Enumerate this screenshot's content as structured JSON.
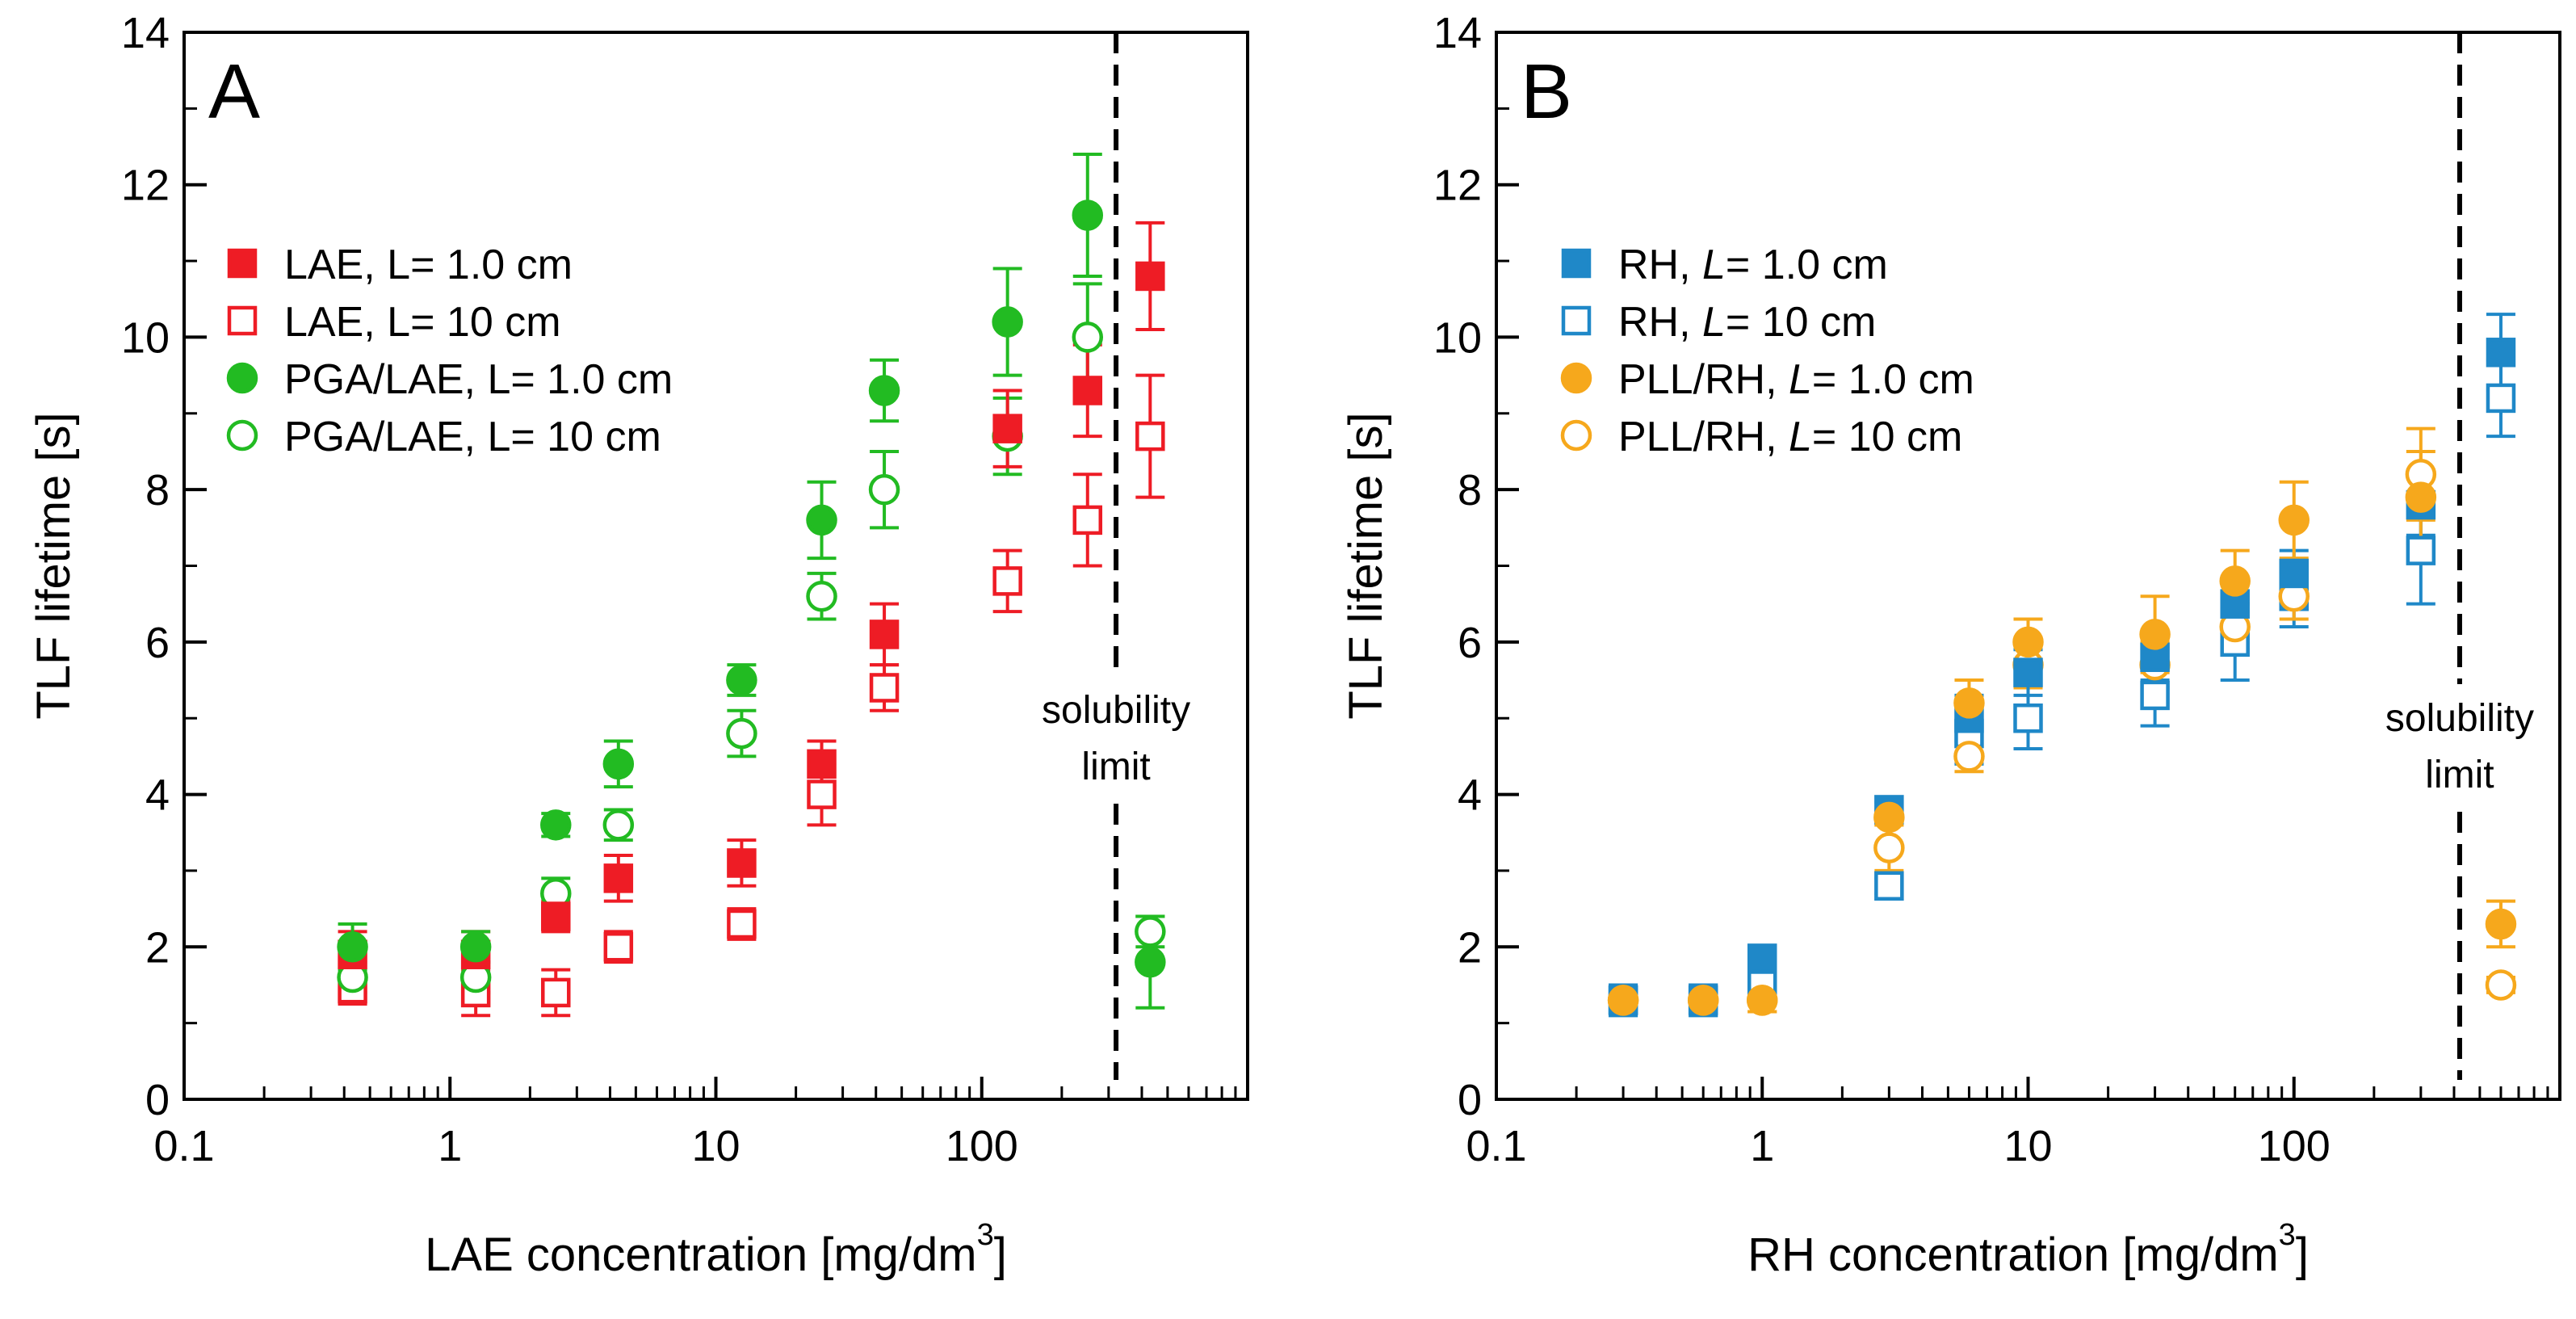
{
  "chart_data": [
    {
      "type": "scatter",
      "panel": "A",
      "xlabel": "LAE concentration [mg/dm",
      "xlabel_sup": "3",
      "xlabel_end": "]",
      "ylabel": "TLF lifetime [s]",
      "xscale": "log",
      "xlim": [
        0.1,
        1000
      ],
      "ylim": [
        0,
        14
      ],
      "xticks": [
        0.1,
        1,
        10,
        100
      ],
      "xtick_labels": [
        "0.1",
        "1",
        "10",
        "100"
      ],
      "yticks": [
        0,
        2,
        4,
        6,
        8,
        10,
        12,
        14
      ],
      "ytick_labels": [
        "0",
        "2",
        "4",
        "6",
        "8",
        "10",
        "12",
        "14"
      ],
      "annotation": {
        "x": 320,
        "lines": [
          "solubility",
          "limit"
        ]
      },
      "series": [
        {
          "name": "LAE, L= 1.0 cm",
          "name_parts": [
            "LAE, L= 1.0 cm"
          ],
          "marker": "square",
          "filled": true,
          "color": "#ee1c25",
          "x": [
            0.43,
            1.25,
            2.5,
            4.3,
            12.5,
            25,
            43,
            125,
            250,
            430
          ],
          "y": [
            1.9,
            1.9,
            2.4,
            2.9,
            3.1,
            4.4,
            6.1,
            8.8,
            9.3,
            10.8
          ],
          "err": [
            0.3,
            0.3,
            0.2,
            0.3,
            0.3,
            0.3,
            0.4,
            0.5,
            0.6,
            0.7
          ]
        },
        {
          "name": "LAE, L= 10 cm",
          "name_parts": [
            "LAE, L= 10 cm"
          ],
          "marker": "square",
          "filled": false,
          "color": "#ee1c25",
          "x": [
            0.43,
            1.25,
            2.5,
            4.3,
            12.5,
            25,
            43,
            125,
            250,
            430
          ],
          "y": [
            1.45,
            1.4,
            1.4,
            2.0,
            2.3,
            4.0,
            5.4,
            6.8,
            7.6,
            8.7
          ],
          "err": [
            0.2,
            0.3,
            0.3,
            0.2,
            0.2,
            0.4,
            0.3,
            0.4,
            0.6,
            0.8
          ]
        },
        {
          "name": "PGA/LAE, L= 1.0 cm",
          "name_parts": [
            "PGA/LAE, L= 1.0 cm"
          ],
          "marker": "circle",
          "filled": true,
          "color": "#22bb22",
          "x": [
            0.43,
            1.25,
            2.5,
            4.3,
            12.5,
            25,
            43,
            125,
            250,
            430
          ],
          "y": [
            2.0,
            2.0,
            3.6,
            4.4,
            5.5,
            7.6,
            9.3,
            10.2,
            11.6,
            1.8
          ],
          "err": [
            0.3,
            0.2,
            0.15,
            0.3,
            0.2,
            0.5,
            0.4,
            0.7,
            0.8,
            0.6
          ]
        },
        {
          "name": "PGA/LAE, L= 10 cm",
          "name_parts": [
            "PGA/LAE, L= 10 cm"
          ],
          "marker": "circle",
          "filled": false,
          "color": "#22bb22",
          "x": [
            0.43,
            1.25,
            2.5,
            4.3,
            12.5,
            25,
            43,
            125,
            250,
            430
          ],
          "y": [
            1.6,
            1.6,
            2.7,
            3.6,
            4.8,
            6.6,
            8.0,
            8.7,
            10.0,
            2.2
          ],
          "err": [
            0.2,
            0.2,
            0.2,
            0.2,
            0.3,
            0.3,
            0.5,
            0.5,
            0.7,
            0.2
          ]
        }
      ]
    },
    {
      "type": "scatter",
      "panel": "B",
      "xlabel": "RH concentration [mg/dm",
      "xlabel_sup": "3",
      "xlabel_end": "]",
      "ylabel": "TLF lifetime [s]",
      "xscale": "log",
      "xlim": [
        0.1,
        1000
      ],
      "ylim": [
        0,
        14
      ],
      "xticks": [
        0.1,
        1,
        10,
        100
      ],
      "xtick_labels": [
        "0.1",
        "1",
        "10",
        "100"
      ],
      "yticks": [
        0,
        2,
        4,
        6,
        8,
        10,
        12,
        14
      ],
      "ytick_labels": [
        "0",
        "2",
        "4",
        "6",
        "8",
        "10",
        "12",
        "14"
      ],
      "annotation": {
        "x": 420,
        "lines": [
          "solubility",
          "limit"
        ]
      },
      "series": [
        {
          "name": "RH, L= 1.0 cm",
          "name_parts": [
            "RH, ",
            "L",
            "= 1.0 cm"
          ],
          "marker": "square",
          "filled": true,
          "color": "#1f88c8",
          "x": [
            0.3,
            0.6,
            1.0,
            3.0,
            6.0,
            10,
            30,
            60,
            100,
            300,
            600
          ],
          "y": [
            1.3,
            1.3,
            1.85,
            3.8,
            5.0,
            5.6,
            5.8,
            6.5,
            6.9,
            7.8,
            9.8
          ],
          "err": [
            0.2,
            0.2,
            0.15,
            0.1,
            0.3,
            0.3,
            0.3,
            0.3,
            0.3,
            0.4,
            0.5
          ]
        },
        {
          "name": "RH, L= 10 cm",
          "name_parts": [
            "RH, ",
            "L",
            "= 10 cm"
          ],
          "marker": "square",
          "filled": false,
          "color": "#1f88c8",
          "x": [
            0.3,
            0.6,
            1.0,
            3.0,
            6.0,
            10,
            30,
            60,
            100,
            300,
            600
          ],
          "y": [
            1.3,
            1.3,
            1.5,
            2.8,
            4.8,
            5.0,
            5.3,
            6.0,
            6.6,
            7.2,
            9.2
          ],
          "err": [
            0.2,
            0.2,
            0.2,
            0.1,
            0.4,
            0.4,
            0.4,
            0.5,
            0.4,
            0.7,
            0.5
          ]
        },
        {
          "name": "PLL/RH, L= 1.0 cm",
          "name_parts": [
            "PLL/RH, ",
            "L",
            "= 1.0 cm"
          ],
          "marker": "circle",
          "filled": true,
          "color": "#f6a81c",
          "x": [
            0.3,
            0.6,
            1.0,
            3.0,
            6.0,
            10,
            30,
            60,
            100,
            300,
            600
          ],
          "y": [
            1.3,
            1.3,
            1.3,
            3.7,
            5.2,
            6.0,
            6.1,
            6.8,
            7.6,
            7.9,
            2.3
          ],
          "err": [
            0.15,
            0.15,
            0.15,
            0.1,
            0.3,
            0.3,
            0.5,
            0.4,
            0.5,
            0.6,
            0.3
          ]
        },
        {
          "name": "PLL/RH, L= 10 cm",
          "name_parts": [
            "PLL/RH, ",
            "L",
            "= 10 cm"
          ],
          "marker": "circle",
          "filled": false,
          "color": "#f6a81c",
          "x": [
            0.3,
            0.6,
            1.0,
            3.0,
            6.0,
            10,
            30,
            60,
            100,
            300,
            600
          ],
          "y": [
            1.3,
            1.3,
            1.3,
            3.3,
            4.5,
            5.7,
            5.7,
            6.2,
            6.6,
            8.2,
            1.5
          ],
          "err": [
            0.15,
            0.15,
            0.15,
            0.3,
            0.2,
            0.3,
            0.3,
            0.3,
            0.3,
            0.6,
            0.1
          ]
        }
      ]
    }
  ]
}
